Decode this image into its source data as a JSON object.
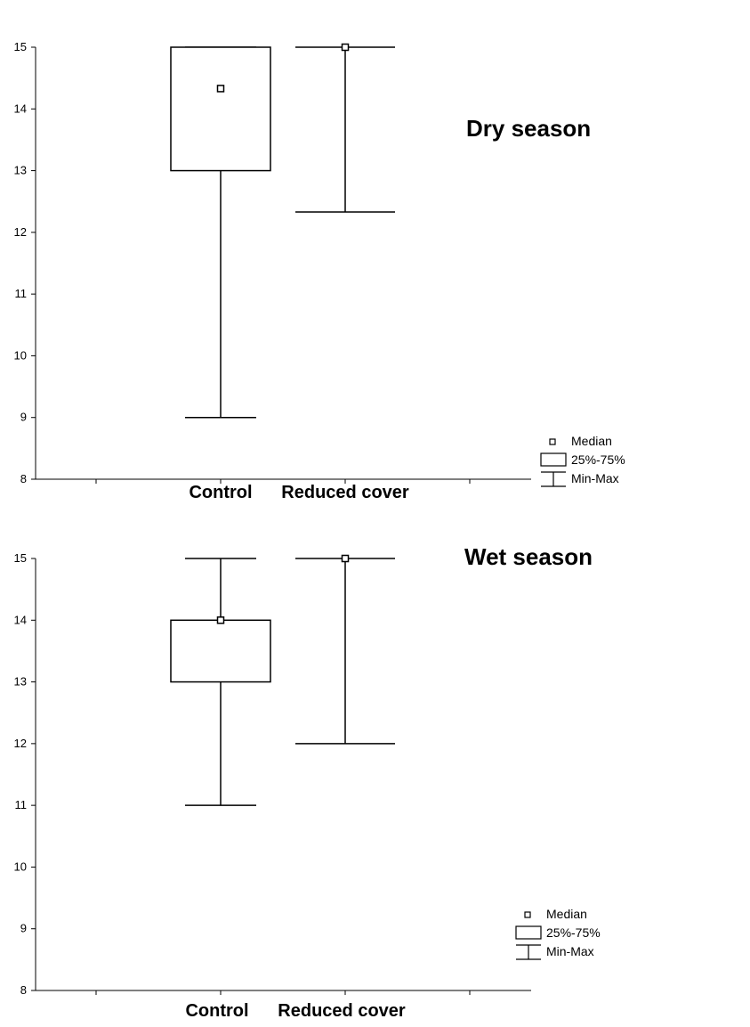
{
  "chart_data": [
    {
      "type": "box",
      "title": "Dry season",
      "xlabel": "",
      "ylabel": "",
      "ylim": [
        8,
        15
      ],
      "yticks": [
        "8",
        "9",
        "10",
        "11",
        "12",
        "13",
        "14",
        "15"
      ],
      "categories": [
        "Control",
        "Reduced cover"
      ],
      "boxes": [
        {
          "category": "Control",
          "min": 9,
          "q1": 13,
          "median": 14.33,
          "q3": 15,
          "max": 15
        },
        {
          "category": "Reduced cover",
          "min": 12.33,
          "q1": 15,
          "median": 15,
          "q3": 15,
          "max": 15
        }
      ],
      "legend": {
        "position": "bottom-right",
        "median": "Median",
        "box": "25%-75%",
        "whisker": "Min-Max"
      },
      "grid": false
    },
    {
      "type": "box",
      "title": "Wet season",
      "xlabel": "",
      "ylabel": "",
      "ylim": [
        8,
        15
      ],
      "yticks": [
        "8",
        "9",
        "10",
        "11",
        "12",
        "13",
        "14",
        "15"
      ],
      "categories": [
        "Control",
        "Reduced cover"
      ],
      "boxes": [
        {
          "category": "Control",
          "min": 11,
          "q1": 13,
          "median": 14,
          "q3": 14,
          "max": 15
        },
        {
          "category": "Reduced cover",
          "min": 12,
          "q1": 15,
          "median": 15,
          "q3": 15,
          "max": 15
        }
      ],
      "legend": {
        "position": "bottom-right",
        "median": "Median",
        "box": "25%-75%",
        "whisker": "Min-Max"
      },
      "grid": false
    }
  ]
}
